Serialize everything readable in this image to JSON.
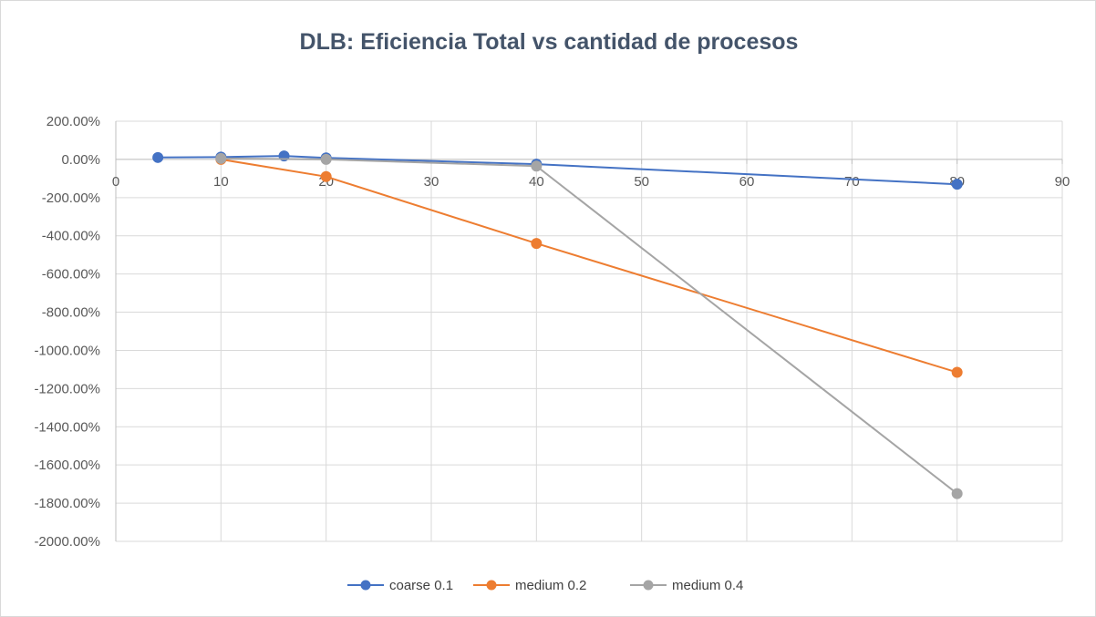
{
  "chart_data": {
    "type": "scatter",
    "title": "DLB: Eficiencia Total vs cantidad de procesos",
    "xlabel": "",
    "ylabel": "",
    "xlim": [
      0,
      90
    ],
    "ylim": [
      -2000,
      200
    ],
    "x_ticks": [
      0,
      10,
      20,
      30,
      40,
      50,
      60,
      70,
      80,
      90
    ],
    "y_ticks": [
      200,
      0,
      -200,
      -400,
      -600,
      -800,
      -1000,
      -1200,
      -1400,
      -1600,
      -1800,
      -2000
    ],
    "x_tick_labels": [
      "0",
      "10",
      "20",
      "30",
      "40",
      "50",
      "60",
      "70",
      "80",
      "90"
    ],
    "y_tick_labels": [
      "200.00%",
      "0.00%",
      "-200.00%",
      "-400.00%",
      "-600.00%",
      "-800.00%",
      "-1000.00%",
      "-1200.00%",
      "-1400.00%",
      "-1600.00%",
      "-1800.00%",
      "-2000.00%"
    ],
    "grid": true,
    "legend_position": "bottom",
    "series": [
      {
        "name": "coarse 0.1",
        "color": "#4472c4",
        "x": [
          4,
          10,
          16,
          20,
          40,
          80
        ],
        "y": [
          10,
          12,
          18,
          8,
          -25,
          -130
        ]
      },
      {
        "name": "medium 0.2",
        "color": "#ed7d31",
        "x": [
          10,
          20,
          40,
          80
        ],
        "y": [
          0,
          -90,
          -440,
          -1115
        ]
      },
      {
        "name": "medium 0.4",
        "color": "#a5a5a5",
        "x": [
          10,
          20,
          40,
          80
        ],
        "y": [
          5,
          0,
          -35,
          -1750
        ]
      }
    ]
  }
}
